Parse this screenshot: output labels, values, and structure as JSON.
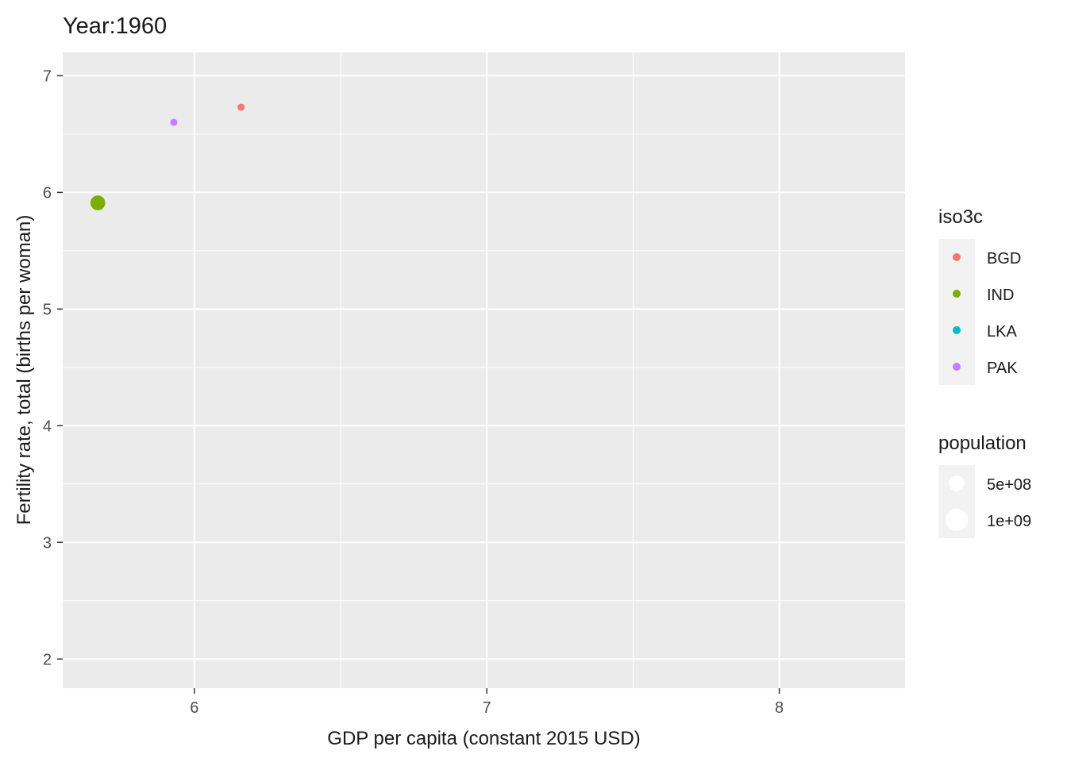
{
  "chart_data": {
    "type": "scatter",
    "title": "Year:1960",
    "xlabel": "GDP per capita (constant 2015 USD)",
    "ylabel": "Fertility rate, total (births per woman)",
    "xlim": [
      5.55,
      8.43
    ],
    "ylim": [
      1.75,
      7.2
    ],
    "x_major_ticks": [
      6,
      7,
      8
    ],
    "x_minor_ticks": [
      6.5,
      7.5
    ],
    "y_major_ticks": [
      2,
      3,
      4,
      5,
      6,
      7
    ],
    "y_minor_ticks": [
      2.5,
      3.5,
      4.5,
      5.5,
      6.5
    ],
    "grid": true,
    "legend_position": "right",
    "color_legend": {
      "title": "iso3c",
      "entries": [
        {
          "label": "BGD",
          "color": "#F8766D"
        },
        {
          "label": "IND",
          "color": "#7CAE00"
        },
        {
          "label": "LKA",
          "color": "#00BFC4"
        },
        {
          "label": "PAK",
          "color": "#C77CFF"
        }
      ]
    },
    "size_legend": {
      "title": "population",
      "entries": [
        {
          "label": "5e+08",
          "value": 500000000
        },
        {
          "label": "1e+09",
          "value": 1000000000
        }
      ]
    },
    "points": [
      {
        "series": "BGD",
        "x": 6.16,
        "y": 6.73,
        "population": 48000000
      },
      {
        "series": "IND",
        "x": 5.67,
        "y": 5.91,
        "population": 445000000
      },
      {
        "series": "PAK",
        "x": 5.93,
        "y": 6.6,
        "population": 45000000
      }
    ]
  }
}
